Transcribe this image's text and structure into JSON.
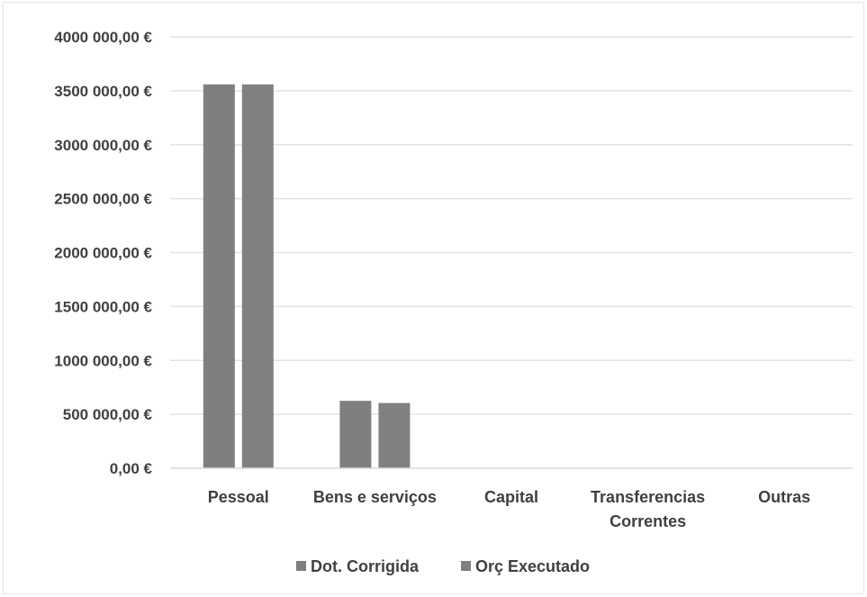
{
  "chart_data": {
    "type": "bar",
    "title": "",
    "xlabel": "",
    "ylabel": "",
    "categories": [
      "Pessoal",
      "Bens e serviços",
      "Capital",
      "Transferencias Correntes",
      "Outras"
    ],
    "category_lines": [
      [
        "Pessoal"
      ],
      [
        "Bens e serviços"
      ],
      [
        "Capital"
      ],
      [
        "Transferencias",
        "Correntes"
      ],
      [
        "Outras"
      ]
    ],
    "series": [
      {
        "name": "Dot. Corrigida",
        "values": [
          3560000,
          625000,
          0,
          0,
          0
        ],
        "color": "#7f7f7f"
      },
      {
        "name": "Orç Executado",
        "values": [
          3560000,
          605000,
          0,
          0,
          0
        ],
        "color": "#808080"
      }
    ],
    "ylim": [
      0,
      4000000
    ],
    "yticks": [
      0,
      500000,
      1000000,
      1500000,
      2000000,
      2500000,
      3000000,
      3500000,
      4000000
    ],
    "ytick_labels": [
      "0,00 €",
      "500 000,00 €",
      "1000 000,00 €",
      "1500 000,00 €",
      "2000 000,00 €",
      "2500 000,00 €",
      "3000 000,00 €",
      "3500 000,00 €",
      "4000 000,00 €"
    ],
    "grid": true,
    "legend_position": "bottom-center"
  }
}
